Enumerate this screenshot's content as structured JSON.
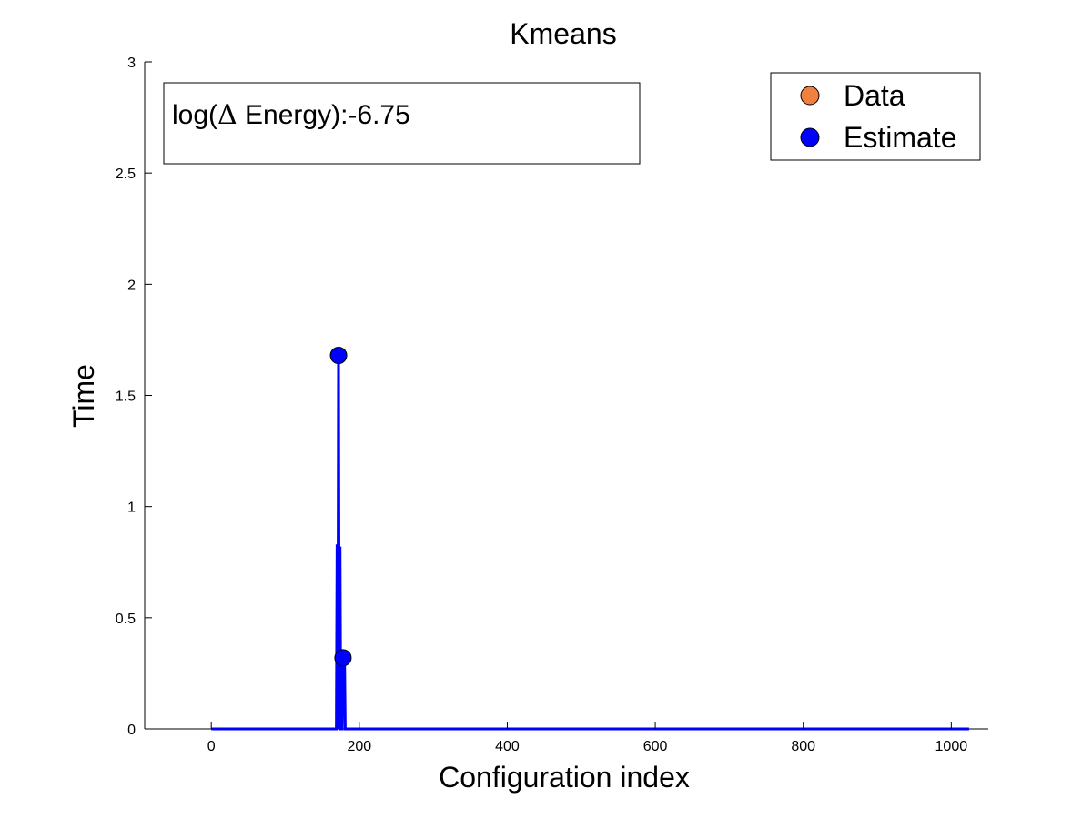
{
  "chart_data": {
    "type": "line",
    "title": "Kmeans",
    "xlabel": "Configuration index",
    "ylabel": "Time",
    "xlim": [
      -90,
      1050
    ],
    "ylim": [
      0,
      3
    ],
    "xticks": [
      0,
      200,
      400,
      600,
      800,
      1000
    ],
    "yticks": [
      0,
      0.5,
      1,
      1.5,
      2,
      2.5,
      3
    ],
    "xtick_labels": [
      "0",
      "200",
      "400",
      "600",
      "800",
      "1000"
    ],
    "ytick_labels": [
      "0",
      "0.5",
      "1",
      "1.5",
      "2",
      "2.5",
      "3"
    ],
    "grid": false,
    "legend_position": "top-right",
    "annotation": {
      "prefix": "log(",
      "delta": "Δ",
      "suffix": " Energy):-6.75"
    },
    "series": [
      {
        "name": "Data",
        "color": "#f08040",
        "marker": "circle",
        "points": []
      },
      {
        "name": "Estimate",
        "color": "#0000ff",
        "marker": "circle",
        "line": [
          [
            0,
            0
          ],
          [
            169,
            0
          ],
          [
            170,
            0.83
          ],
          [
            171,
            0
          ],
          [
            172,
            1.68
          ],
          [
            173,
            0
          ],
          [
            174,
            0.82
          ],
          [
            175,
            0
          ],
          [
            177,
            0
          ],
          [
            178,
            0.32
          ],
          [
            179,
            0.08
          ],
          [
            180,
            0.32
          ],
          [
            181,
            0
          ],
          [
            1024,
            0
          ]
        ],
        "points": [
          [
            172,
            1.68
          ],
          [
            178,
            0.32
          ]
        ]
      }
    ]
  }
}
